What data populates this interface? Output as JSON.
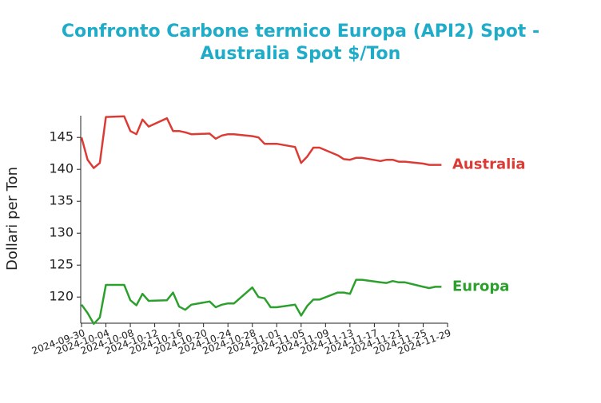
{
  "chart_data": {
    "type": "line",
    "title": "Confronto Carbone termico Europa (API2) Spot -",
    "subtitle": "Australia Spot $/Ton",
    "y_label": "Dollari per Ton",
    "x": [
      "2024-09-30",
      "2024-10-01",
      "2024-10-02",
      "2024-10-03",
      "2024-10-04",
      "2024-10-07",
      "2024-10-08",
      "2024-10-09",
      "2024-10-10",
      "2024-10-11",
      "2024-10-14",
      "2024-10-15",
      "2024-10-16",
      "2024-10-17",
      "2024-10-18",
      "2024-10-21",
      "2024-10-22",
      "2024-10-23",
      "2024-10-24",
      "2024-10-25",
      "2024-10-28",
      "2024-10-29",
      "2024-10-30",
      "2024-10-31",
      "2024-11-01",
      "2024-11-04",
      "2024-11-05",
      "2024-11-06",
      "2024-11-07",
      "2024-11-08",
      "2024-11-11",
      "2024-11-12",
      "2024-11-13",
      "2024-11-14",
      "2024-11-15",
      "2024-11-18",
      "2024-11-19",
      "2024-11-20",
      "2024-11-21",
      "2024-11-22",
      "2024-11-25",
      "2024-11-26",
      "2024-11-27",
      "2024-11-28"
    ],
    "series": [
      {
        "name": "Australia",
        "color": "#dc3b35",
        "values": [
          145,
          141.5,
          140.2,
          141,
          148.2,
          148.3,
          146,
          145.5,
          147.8,
          146.7,
          148,
          146,
          146,
          145.8,
          145.5,
          145.6,
          144.8,
          145.3,
          145.5,
          145.5,
          145.2,
          145,
          144,
          144,
          144,
          143.5,
          141,
          142,
          143.4,
          143.4,
          142.2,
          141.6,
          141.5,
          141.8,
          141.8,
          141.3,
          141.5,
          141.5,
          141.2,
          141.2,
          140.9,
          140.7,
          140.7,
          140.7
        ]
      },
      {
        "name": "Europa",
        "color": "#2ca02c",
        "values": [
          118.8,
          117.5,
          115.8,
          116.8,
          121.9,
          121.9,
          119.5,
          118.7,
          120.5,
          119.4,
          119.5,
          120.7,
          118.5,
          118,
          118.8,
          119.3,
          118.4,
          118.8,
          119,
          119,
          121.5,
          120,
          119.8,
          118.4,
          118.4,
          118.8,
          117.1,
          118.6,
          119.6,
          119.6,
          120.7,
          120.7,
          120.5,
          122.7,
          122.7,
          122.3,
          122.2,
          122.5,
          122.3,
          122.3,
          121.6,
          121.4,
          121.6,
          121.6
        ]
      }
    ],
    "xlim": [
      "2024-09-30",
      "2024-11-29"
    ],
    "xticks": [
      "2024-09-30",
      "2024-10-04",
      "2024-10-08",
      "2024-10-12",
      "2024-10-16",
      "2024-10-20",
      "2024-10-24",
      "2024-10-28",
      "2024-11-01",
      "2024-11-05",
      "2024-11-09",
      "2024-11-13",
      "2024-11-17",
      "2024-11-21",
      "2024-11-25",
      "2024-11-29"
    ],
    "ylim": [
      115.9,
      148.4
    ],
    "yticks": [
      120,
      125,
      130,
      135,
      140,
      145
    ]
  }
}
